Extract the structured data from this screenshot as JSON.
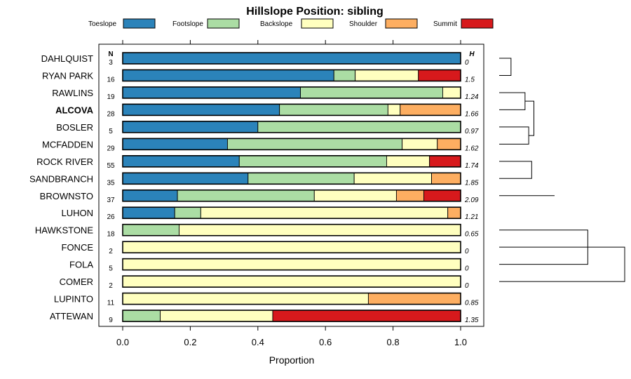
{
  "chart_data": {
    "type": "bar",
    "stacked": true,
    "orientation": "horizontal",
    "title": "Hillslope Position: sibling",
    "xlabel": "Proportion",
    "xlim": [
      0,
      1
    ],
    "xticks": [
      "0.0",
      "0.2",
      "0.4",
      "0.6",
      "0.8",
      "1.0"
    ],
    "xtick_values": [
      0,
      0.2,
      0.4,
      0.6,
      0.8,
      1.0
    ],
    "n_header": "N",
    "h_header": "H",
    "legend_position": "top",
    "series": [
      {
        "name": "Toeslope",
        "color": "#2b83ba"
      },
      {
        "name": "Footslope",
        "color": "#abdda4"
      },
      {
        "name": "Backslope",
        "color": "#ffffbf"
      },
      {
        "name": "Shoulder",
        "color": "#fdae61"
      },
      {
        "name": "Summit",
        "color": "#d7191c"
      }
    ],
    "categories": [
      {
        "name": "DAHLQUIST",
        "n": "3",
        "h": "0",
        "bold": false,
        "values": [
          1.0,
          0,
          0,
          0,
          0
        ]
      },
      {
        "name": "RYAN PARK",
        "n": "16",
        "h": "1.5",
        "bold": false,
        "values": [
          0.625,
          0.063,
          0.187,
          0,
          0.125
        ]
      },
      {
        "name": "RAWLINS",
        "n": "19",
        "h": "1.24",
        "bold": false,
        "values": [
          0.526,
          0.421,
          0.053,
          0,
          0
        ]
      },
      {
        "name": "ALCOVA",
        "n": "28",
        "h": "1.66",
        "bold": true,
        "values": [
          0.464,
          0.321,
          0.036,
          0.179,
          0
        ]
      },
      {
        "name": "BOSLER",
        "n": "5",
        "h": "0.97",
        "bold": false,
        "values": [
          0.4,
          0.6,
          0,
          0,
          0
        ]
      },
      {
        "name": "MCFADDEN",
        "n": "29",
        "h": "1.62",
        "bold": false,
        "values": [
          0.31,
          0.517,
          0.104,
          0.069,
          0
        ]
      },
      {
        "name": "ROCK RIVER",
        "n": "55",
        "h": "1.74",
        "bold": false,
        "values": [
          0.345,
          0.436,
          0.127,
          0,
          0.092
        ]
      },
      {
        "name": "SANDBRANCH",
        "n": "35",
        "h": "1.85",
        "bold": false,
        "values": [
          0.371,
          0.314,
          0.229,
          0.086,
          0
        ]
      },
      {
        "name": "BROWNSTO",
        "n": "37",
        "h": "2.09",
        "bold": false,
        "values": [
          0.162,
          0.405,
          0.243,
          0.081,
          0.109
        ]
      },
      {
        "name": "LUHON",
        "n": "26",
        "h": "1.21",
        "bold": false,
        "values": [
          0.154,
          0.077,
          0.731,
          0.038,
          0
        ]
      },
      {
        "name": "HAWKSTONE",
        "n": "18",
        "h": "0.65",
        "bold": false,
        "values": [
          0,
          0.167,
          0.833,
          0,
          0
        ]
      },
      {
        "name": "FONCE",
        "n": "2",
        "h": "0",
        "bold": false,
        "values": [
          0,
          0,
          1.0,
          0,
          0
        ]
      },
      {
        "name": "FOLA",
        "n": "5",
        "h": "0",
        "bold": false,
        "values": [
          0,
          0,
          1.0,
          0,
          0
        ]
      },
      {
        "name": "COMER",
        "n": "2",
        "h": "0",
        "bold": false,
        "values": [
          0,
          0,
          1.0,
          0,
          0
        ]
      },
      {
        "name": "LUPINTO",
        "n": "11",
        "h": "0.85",
        "bold": false,
        "values": [
          0,
          0,
          0.727,
          0.273,
          0
        ]
      },
      {
        "name": "ATTEWAN",
        "n": "9",
        "h": "1.35",
        "bold": false,
        "values": [
          0,
          0.111,
          0.333,
          0,
          0.556
        ]
      }
    ],
    "dendrogram": {
      "position": "right",
      "merges": [
        [
          11,
          12,
          0.5
        ],
        [
          15,
          13,
          0.8
        ],
        [
          -1,
          -2,
          1.6
        ],
        [
          14,
          10,
          2.4
        ],
        [
          8,
          9,
          3.0
        ],
        [
          -3,
          -4,
          3.5
        ],
        [
          -5,
          -6,
          4.0
        ],
        [
          -7,
          -8,
          4.4
        ],
        [
          6,
          7,
          4.7
        ],
        [
          2,
          3,
          5.0
        ],
        [
          4,
          -10,
          5.6
        ],
        [
          0,
          1,
          7.0
        ],
        [
          -9,
          5,
          7.5
        ],
        [
          -11,
          -13,
          12.0
        ],
        [
          -12,
          -14,
          17.0
        ]
      ]
    }
  }
}
